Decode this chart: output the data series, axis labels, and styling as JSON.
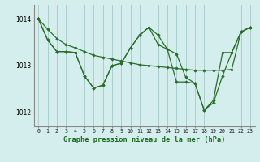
{
  "title": "Graphe pression niveau de la mer (hPa)",
  "bg_color": "#d4eeed",
  "grid_color": "#aacfcc",
  "line_color": "#2a6e2a",
  "marker_color": "#2a6e2a",
  "x_ticks": [
    0,
    1,
    2,
    3,
    4,
    5,
    6,
    7,
    8,
    9,
    10,
    11,
    12,
    13,
    14,
    15,
    16,
    17,
    18,
    19,
    20,
    21,
    22,
    23
  ],
  "ylim": [
    1011.7,
    1014.3
  ],
  "yticks": [
    1012,
    1013,
    1014
  ],
  "series": [
    [
      1014.0,
      1013.78,
      1013.58,
      1013.45,
      1013.38,
      1013.3,
      1013.22,
      1013.18,
      1013.14,
      1013.1,
      1013.06,
      1013.02,
      1013.0,
      1012.98,
      1012.96,
      1012.94,
      1012.92,
      1012.9,
      1012.9,
      1012.9,
      1012.9,
      1012.92,
      1013.72,
      1013.82
    ],
    [
      1014.0,
      1013.55,
      1013.3,
      1013.3,
      1013.28,
      1012.78,
      1012.52,
      1012.58,
      1013.0,
      1013.05,
      1013.38,
      1013.65,
      1013.82,
      1013.65,
      1013.35,
      1012.65,
      1012.65,
      1012.62,
      1012.05,
      1012.2,
      1012.78,
      1013.28,
      1013.72,
      1013.82
    ],
    [
      1014.0,
      1013.55,
      1013.3,
      1013.3,
      1013.28,
      1012.78,
      1012.52,
      1012.58,
      1013.0,
      1013.05,
      1013.38,
      1013.65,
      1013.82,
      1013.45,
      1013.35,
      1013.25,
      1012.75,
      1012.62,
      1012.05,
      1012.25,
      1013.28,
      1013.28,
      1013.72,
      1013.82
    ]
  ]
}
